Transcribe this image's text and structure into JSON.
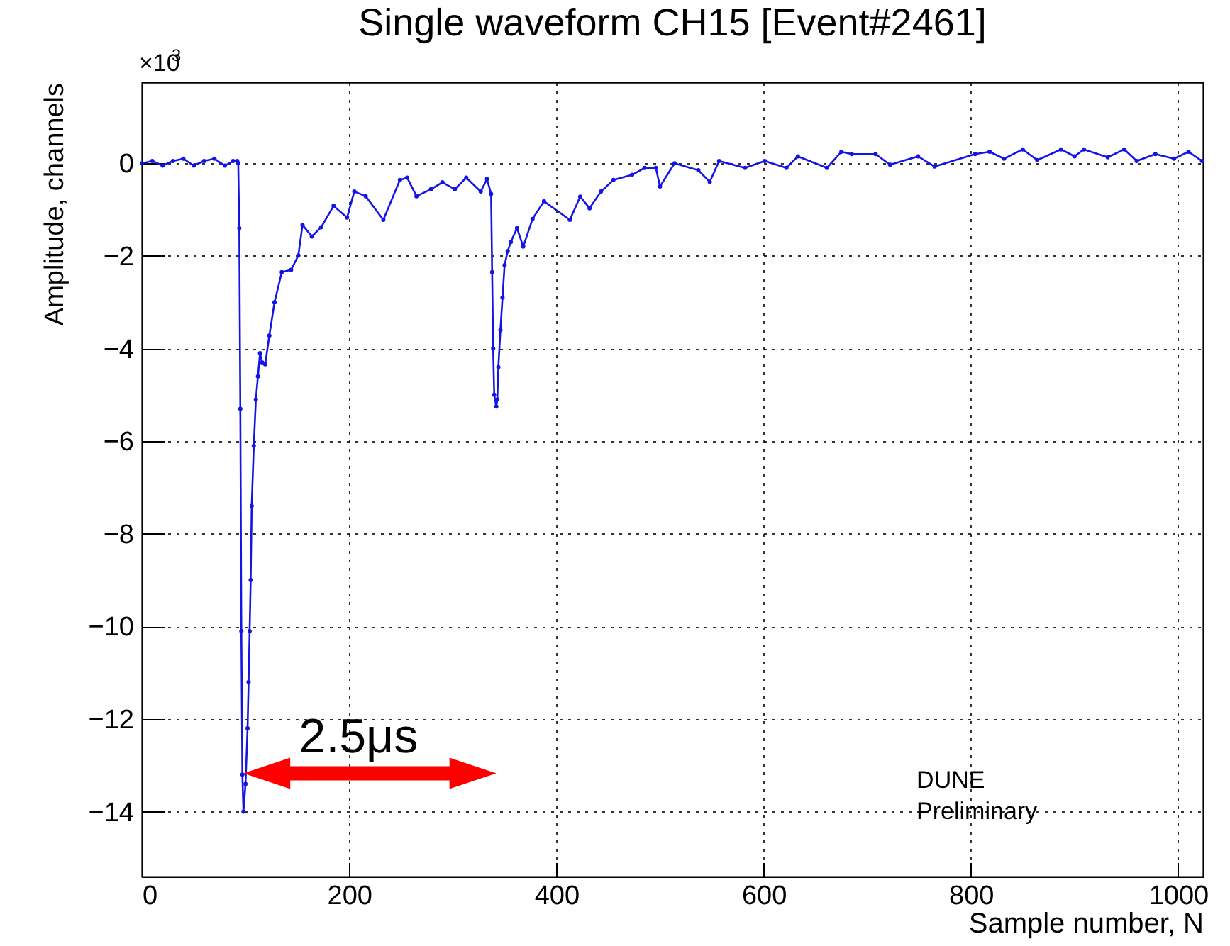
{
  "chart_data": {
    "type": "line",
    "title": "Single waveform CH15 [Event#2461]",
    "xlabel": "Sample number, N",
    "ylabel": "Amplitude, channels",
    "x": [
      0,
      10,
      20,
      30,
      40,
      50,
      60,
      70,
      80,
      88,
      92,
      93,
      94,
      95,
      96,
      97,
      98,
      100,
      102,
      103,
      104,
      105,
      106,
      108,
      110,
      112,
      114,
      116,
      119,
      123,
      128,
      135,
      144,
      151,
      155,
      164,
      173,
      185,
      198,
      205,
      216,
      233,
      249,
      256,
      265,
      279,
      290,
      302,
      313,
      327,
      333,
      337,
      338,
      339,
      340,
      342,
      343,
      344,
      346,
      348,
      350,
      353,
      356,
      362,
      368,
      377,
      388,
      413,
      423,
      432,
      443,
      455,
      473,
      485,
      496,
      500,
      514,
      537,
      548,
      557,
      582,
      601,
      622,
      633,
      661,
      675,
      685,
      708,
      722,
      749,
      765,
      804,
      818,
      832,
      850,
      864,
      887,
      900,
      909,
      932,
      948,
      960,
      978,
      996,
      1010,
      1023
    ],
    "series": [
      {
        "color": "#1414e6",
        "values": [
          0,
          0.05,
          -0.05,
          0.05,
          0.1,
          -0.05,
          0.05,
          0.1,
          -0.05,
          0.05,
          0.05,
          0,
          -1.4,
          -5.3,
          -10.1,
          -13.2,
          -14.0,
          -13.4,
          -12.2,
          -11.2,
          -10.1,
          -9.0,
          -7.4,
          -6.1,
          -5.1,
          -4.6,
          -4.1,
          -4.3,
          -4.34,
          -3.72,
          -3.0,
          -2.35,
          -2.3,
          -1.99,
          -1.33,
          -1.58,
          -1.38,
          -0.92,
          -1.17,
          -0.61,
          -0.71,
          -1.22,
          -0.36,
          -0.31,
          -0.71,
          -0.56,
          -0.41,
          -0.56,
          -0.31,
          -0.61,
          -0.34,
          -0.66,
          -2.35,
          -4.0,
          -5.0,
          -5.25,
          -5.1,
          -4.4,
          -3.6,
          -2.9,
          -2.2,
          -1.9,
          -1.7,
          -1.4,
          -1.8,
          -1.2,
          -0.82,
          -1.22,
          -0.72,
          -0.97,
          -0.61,
          -0.36,
          -0.25,
          -0.1,
          -0.1,
          -0.5,
          0,
          -0.15,
          -0.4,
          0.05,
          -0.1,
          0.05,
          -0.1,
          0.15,
          -0.1,
          0.25,
          0.2,
          0.2,
          -0.03,
          0.15,
          -0.07,
          0.2,
          0.25,
          0.1,
          0.3,
          0.07,
          0.3,
          0.15,
          0.3,
          0.13,
          0.3,
          0.05,
          0.2,
          0.1,
          0.25,
          0.05
        ]
      }
    ],
    "xlim": [
      0,
      1024
    ],
    "ylim": [
      -15.4,
      1.75
    ],
    "xticks": [
      0,
      200,
      400,
      600,
      800,
      {
        "value": 1000,
        "label": "1000"
      }
    ],
    "yticks": [
      -14,
      -12,
      -10,
      -8,
      -6,
      -4,
      -2,
      0
    ],
    "grid": true,
    "marker": "circle",
    "line_style": "solid",
    "annotations": [
      "2.5μs",
      "DUNE\nPreliminary",
      "×10$^{3}$"
    ]
  }
}
